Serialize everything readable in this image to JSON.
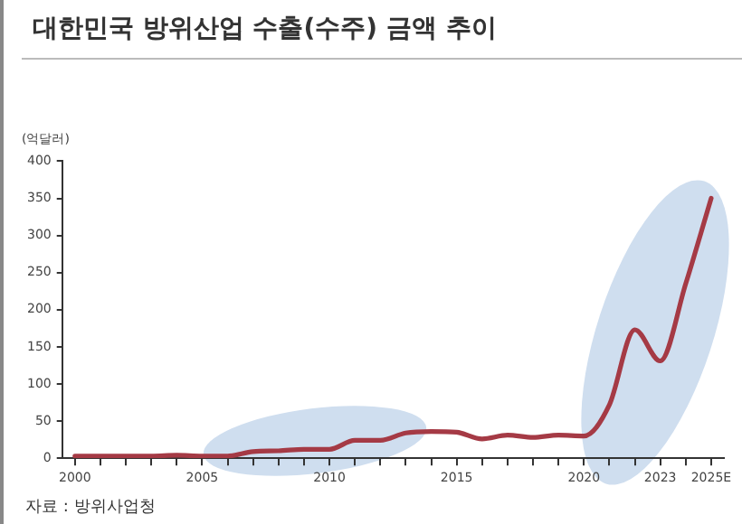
{
  "chart_data": {
    "type": "line",
    "title": "대한민국 방위산업 수출(수주) 금액 추이",
    "ylabel": "(억달러)",
    "annotations": [
      "자료 : 방위사업청"
    ],
    "x": [
      2000,
      2001,
      2002,
      2003,
      2004,
      2005,
      2006,
      2007,
      2008,
      2009,
      2010,
      2011,
      2012,
      2013,
      2014,
      2015,
      2016,
      2017,
      2018,
      2019,
      2020,
      2021,
      2022,
      2023,
      2024,
      2025
    ],
    "series": [
      {
        "color": "#a53a45",
        "values": [
          3,
          3,
          3,
          3,
          4,
          3,
          3,
          9,
          10,
          12,
          12,
          24,
          24,
          34,
          36,
          35,
          26,
          31,
          28,
          31,
          30,
          72,
          173,
          131,
          235,
          350
        ]
      }
    ],
    "xlim": [
      1999.5,
      2025.5
    ],
    "xticks": [
      2000,
      {
        "value": 2001,
        "label": null
      },
      {
        "value": 2002,
        "label": null
      },
      {
        "value": 2003,
        "label": null
      },
      {
        "value": 2004,
        "label": null
      },
      2005,
      {
        "value": 2006,
        "label": null
      },
      {
        "value": 2007,
        "label": null
      },
      {
        "value": 2008,
        "label": null
      },
      {
        "value": 2009,
        "label": null
      },
      2010,
      {
        "value": 2011,
        "label": null
      },
      {
        "value": 2012,
        "label": null
      },
      {
        "value": 2013,
        "label": null
      },
      {
        "value": 2014,
        "label": null
      },
      2015,
      {
        "value": 2016,
        "label": null
      },
      {
        "value": 2017,
        "label": null
      },
      {
        "value": 2018,
        "label": null
      },
      {
        "value": 2019,
        "label": null
      },
      2020,
      {
        "value": 2021,
        "label": null
      },
      {
        "value": 2022,
        "label": null
      },
      2023,
      {
        "value": 2024,
        "label": null
      },
      {
        "value": 2025,
        "label": "2025E"
      }
    ],
    "ylim": [
      0,
      400
    ],
    "yticks": [
      0,
      50,
      100,
      150,
      200,
      250,
      300,
      350,
      400
    ],
    "grid": false,
    "legend": false,
    "marker": "none",
    "line_style": "solid"
  }
}
